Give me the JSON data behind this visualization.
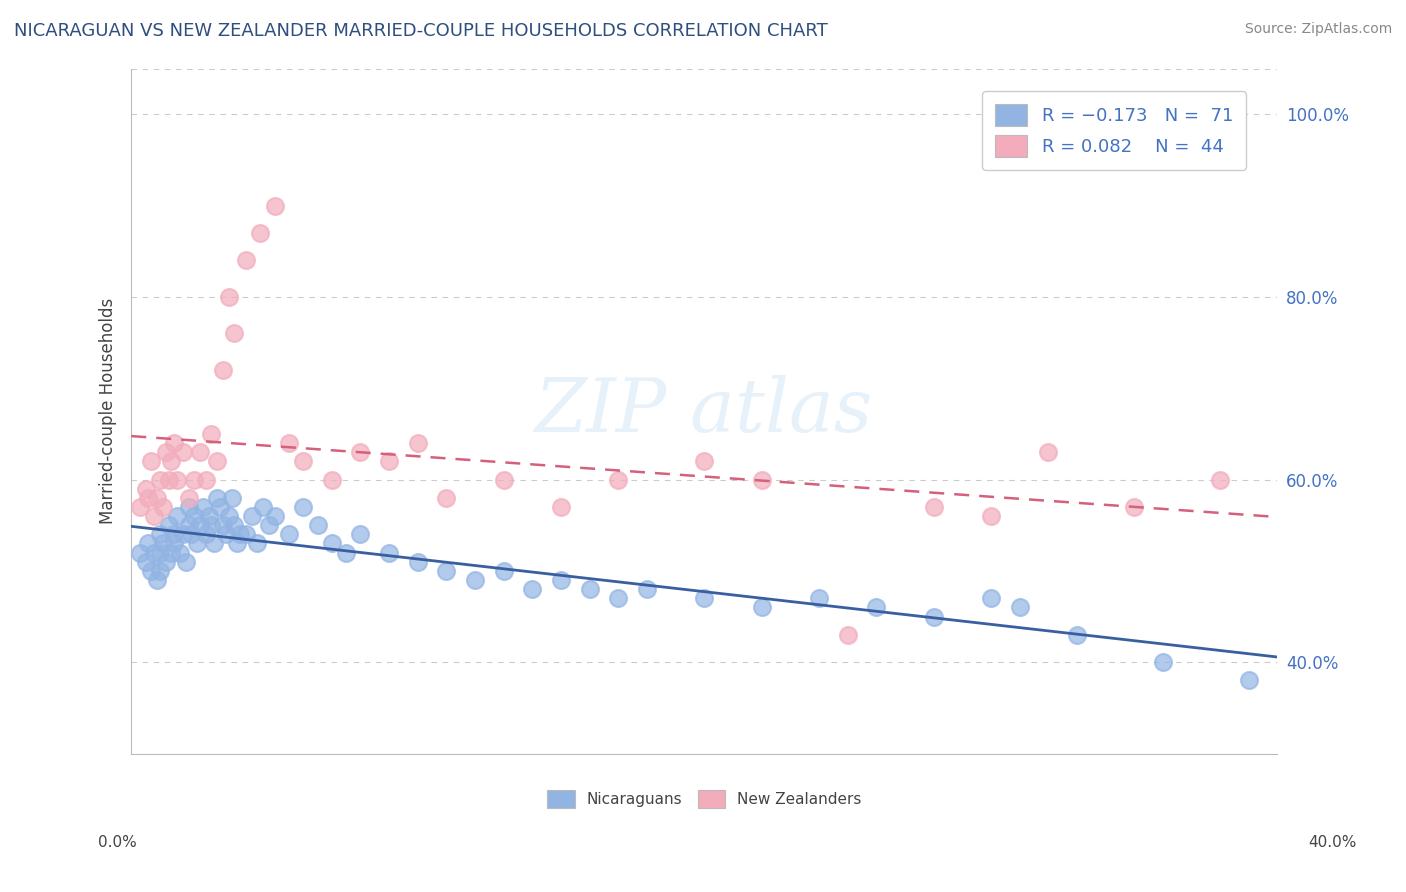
{
  "title": "NICARAGUAN VS NEW ZEALANDER MARRIED-COUPLE HOUSEHOLDS CORRELATION CHART",
  "source": "Source: ZipAtlas.com",
  "ylabel": "Married-couple Households",
  "ytick_labels": [
    "40.0%",
    "60.0%",
    "80.0%",
    "100.0%"
  ],
  "ytick_vals": [
    0.4,
    0.6,
    0.8,
    1.0
  ],
  "xlim": [
    0.0,
    0.4
  ],
  "ylim": [
    0.3,
    1.05
  ],
  "blue_color": "#92B4E3",
  "pink_color": "#F2ACBB",
  "blue_line_color": "#3A5FA0",
  "pink_line_color": "#D4607A",
  "grid_color": "#CCCCCC",
  "background_color": "#FFFFFF",
  "blue_x": [
    0.003,
    0.005,
    0.006,
    0.007,
    0.008,
    0.009,
    0.01,
    0.01,
    0.01,
    0.011,
    0.012,
    0.013,
    0.014,
    0.015,
    0.015,
    0.016,
    0.017,
    0.018,
    0.019,
    0.02,
    0.02,
    0.021,
    0.022,
    0.023,
    0.024,
    0.025,
    0.026,
    0.027,
    0.028,
    0.029,
    0.03,
    0.031,
    0.032,
    0.033,
    0.034,
    0.035,
    0.036,
    0.037,
    0.038,
    0.04,
    0.042,
    0.044,
    0.046,
    0.048,
    0.05,
    0.055,
    0.06,
    0.065,
    0.07,
    0.075,
    0.08,
    0.09,
    0.1,
    0.11,
    0.12,
    0.13,
    0.14,
    0.15,
    0.16,
    0.17,
    0.18,
    0.2,
    0.22,
    0.24,
    0.26,
    0.28,
    0.3,
    0.31,
    0.33,
    0.36,
    0.39
  ],
  "blue_y": [
    0.52,
    0.51,
    0.53,
    0.5,
    0.52,
    0.49,
    0.54,
    0.52,
    0.5,
    0.53,
    0.51,
    0.55,
    0.52,
    0.54,
    0.53,
    0.56,
    0.52,
    0.54,
    0.51,
    0.57,
    0.55,
    0.54,
    0.56,
    0.53,
    0.55,
    0.57,
    0.54,
    0.56,
    0.55,
    0.53,
    0.58,
    0.57,
    0.55,
    0.54,
    0.56,
    0.58,
    0.55,
    0.53,
    0.54,
    0.54,
    0.56,
    0.53,
    0.57,
    0.55,
    0.56,
    0.54,
    0.57,
    0.55,
    0.53,
    0.52,
    0.54,
    0.52,
    0.51,
    0.5,
    0.49,
    0.5,
    0.48,
    0.49,
    0.48,
    0.47,
    0.48,
    0.47,
    0.46,
    0.47,
    0.46,
    0.45,
    0.47,
    0.46,
    0.43,
    0.4,
    0.38
  ],
  "pink_x": [
    0.003,
    0.005,
    0.006,
    0.007,
    0.008,
    0.009,
    0.01,
    0.011,
    0.012,
    0.013,
    0.014,
    0.015,
    0.016,
    0.018,
    0.02,
    0.022,
    0.024,
    0.026,
    0.028,
    0.03,
    0.032,
    0.034,
    0.036,
    0.04,
    0.045,
    0.05,
    0.055,
    0.06,
    0.07,
    0.08,
    0.09,
    0.1,
    0.11,
    0.13,
    0.15,
    0.17,
    0.2,
    0.22,
    0.25,
    0.28,
    0.3,
    0.32,
    0.35,
    0.38
  ],
  "pink_y": [
    0.57,
    0.59,
    0.58,
    0.62,
    0.56,
    0.58,
    0.6,
    0.57,
    0.63,
    0.6,
    0.62,
    0.64,
    0.6,
    0.63,
    0.58,
    0.6,
    0.63,
    0.6,
    0.65,
    0.62,
    0.72,
    0.8,
    0.76,
    0.84,
    0.87,
    0.9,
    0.64,
    0.62,
    0.6,
    0.63,
    0.62,
    0.64,
    0.58,
    0.6,
    0.57,
    0.6,
    0.62,
    0.6,
    0.43,
    0.57,
    0.56,
    0.63,
    0.57,
    0.6
  ]
}
